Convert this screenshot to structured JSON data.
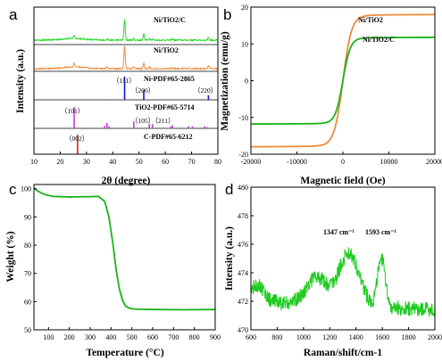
{
  "colors": {
    "green": "#2bd62b",
    "orange": "#f08a3a",
    "blue": "#1515d8",
    "magenta": "#c23fd0",
    "red": "#e11d1d",
    "curve_green": "#19b419",
    "curve_orange": "#f08a3a",
    "bright_green": "#1ecb1e"
  },
  "chart_data": [
    {
      "panel": "a",
      "type": "line",
      "xlabel": "2θ (degree)",
      "ylabel": "Intensity (a.u.)",
      "xlim": [
        10,
        80
      ],
      "xticks": [
        10,
        20,
        30,
        40,
        50,
        60,
        70,
        80
      ],
      "series": [
        {
          "name": "Ni/TiO2/C",
          "color_key": "green",
          "peaks": [
            [
              25.3,
              0.12
            ],
            [
              37.8,
              0.05
            ],
            [
              44.5,
              0.72
            ],
            [
              48.0,
              0.06
            ],
            [
              51.8,
              0.22
            ],
            [
              54.0,
              0.05
            ],
            [
              55.1,
              0.05
            ],
            [
              62.7,
              0.04
            ],
            [
              76.4,
              0.1
            ]
          ]
        },
        {
          "name": "Ni/TiO2",
          "color_key": "orange",
          "peaks": [
            [
              25.3,
              0.14
            ],
            [
              37.8,
              0.06
            ],
            [
              44.5,
              0.85
            ],
            [
              48.0,
              0.08
            ],
            [
              51.8,
              0.2
            ],
            [
              54.0,
              0.06
            ],
            [
              62.7,
              0.05
            ],
            [
              76.4,
              0.1
            ]
          ]
        }
      ],
      "references": [
        {
          "name": "Ni-PDF#65-2865",
          "color_key": "blue",
          "lines": [
            [
              44.5,
              1.0
            ],
            [
              51.8,
              0.42
            ],
            [
              76.4,
              0.2
            ]
          ],
          "hkl": [
            {
              "label": "（111）",
              "x": 44.5
            },
            {
              "label": "（200）",
              "x": 51.8
            },
            {
              "label": "（220）",
              "x": 76.4
            }
          ]
        },
        {
          "name": "TiO2-PDF#65-5714",
          "color_key": "magenta",
          "lines": [
            [
              25.3,
              1.0
            ],
            [
              36.9,
              0.12
            ],
            [
              37.8,
              0.25
            ],
            [
              38.6,
              0.1
            ],
            [
              48.0,
              0.32
            ],
            [
              53.9,
              0.2
            ],
            [
              55.1,
              0.2
            ],
            [
              62.1,
              0.08
            ],
            [
              62.7,
              0.15
            ],
            [
              68.8,
              0.1
            ],
            [
              70.3,
              0.1
            ],
            [
              75.0,
              0.1
            ],
            [
              76.0,
              0.06
            ]
          ],
          "hkl": [
            {
              "label": "（101）",
              "x": 25.3
            },
            {
              "label": "（105）（211）",
              "x": 54.5
            }
          ]
        },
        {
          "name": "C-PDF#65-6212",
          "color_key": "red",
          "lines": [
            [
              26.6,
              1.0
            ]
          ],
          "hkl": [
            {
              "label": "（002）",
              "x": 26.6
            }
          ]
        }
      ]
    },
    {
      "panel": "b",
      "type": "line",
      "xlabel": "Magnetic field (Oe)",
      "ylabel": "Magnetization (emu/g)",
      "xlim": [
        -20000,
        20000
      ],
      "ylim": [
        -20,
        20
      ],
      "xticks": [
        -20000,
        -10000,
        0,
        10000,
        20000
      ],
      "yticks": [
        -20,
        -10,
        0,
        10,
        20
      ],
      "series": [
        {
          "name": "Ni/TiO2",
          "color_key": "curve_orange",
          "ms": 18.0,
          "h0": 1500
        },
        {
          "name": "Ni/TiO2/C",
          "color_key": "curve_green",
          "ms": 11.8,
          "h0": 1300
        }
      ]
    },
    {
      "panel": "c",
      "type": "line",
      "xlabel": "Temperature (°C)",
      "ylabel": "Weight (%)",
      "xlim": [
        30,
        900
      ],
      "ylim": [
        50,
        100
      ],
      "xticks": [
        100,
        200,
        300,
        400,
        500,
        600,
        700,
        800,
        900
      ],
      "yticks": [
        50,
        60,
        70,
        80,
        90,
        100
      ],
      "series": [
        {
          "name": "",
          "color_key": "curve_green",
          "points": [
            [
              30,
              100.2
            ],
            [
              50,
              99.1
            ],
            [
              80,
              98.0
            ],
            [
              120,
              97.3
            ],
            [
              200,
              97.1
            ],
            [
              300,
              97.2
            ],
            [
              340,
              97.3
            ],
            [
              370,
              95.5
            ],
            [
              390,
              90.0
            ],
            [
              410,
              80.0
            ],
            [
              425,
              71.0
            ],
            [
              440,
              64.5
            ],
            [
              455,
              60.5
            ],
            [
              470,
              58.4
            ],
            [
              490,
              57.6
            ],
            [
              520,
              57.3
            ],
            [
              600,
              57.2
            ],
            [
              750,
              57.1
            ],
            [
              900,
              57.2
            ]
          ]
        }
      ]
    },
    {
      "panel": "d",
      "type": "line",
      "xlabel": "Raman/shift/cm-1",
      "ylabel": "Intensity (a.u.)",
      "xlim": [
        600,
        2000
      ],
      "ylim": [
        470,
        480
      ],
      "xticks": [
        600,
        800,
        1000,
        1200,
        1400,
        1600,
        1800,
        2000
      ],
      "yticks": [
        470,
        472,
        474,
        476,
        478,
        480
      ],
      "annotations": [
        {
          "label": "1347 cm⁻¹",
          "x": 1347
        },
        {
          "label": "1593 cm⁻¹",
          "x": 1593
        }
      ],
      "series": [
        {
          "name": "",
          "color_key": "bright_green",
          "baseline": 472.0,
          "bands": [
            [
              1100,
              1.9,
              110
            ],
            [
              1347,
              3.7,
              110
            ],
            [
              1593,
              3.4,
              40
            ],
            [
              650,
              1.2,
              70
            ]
          ]
        }
      ]
    }
  ]
}
